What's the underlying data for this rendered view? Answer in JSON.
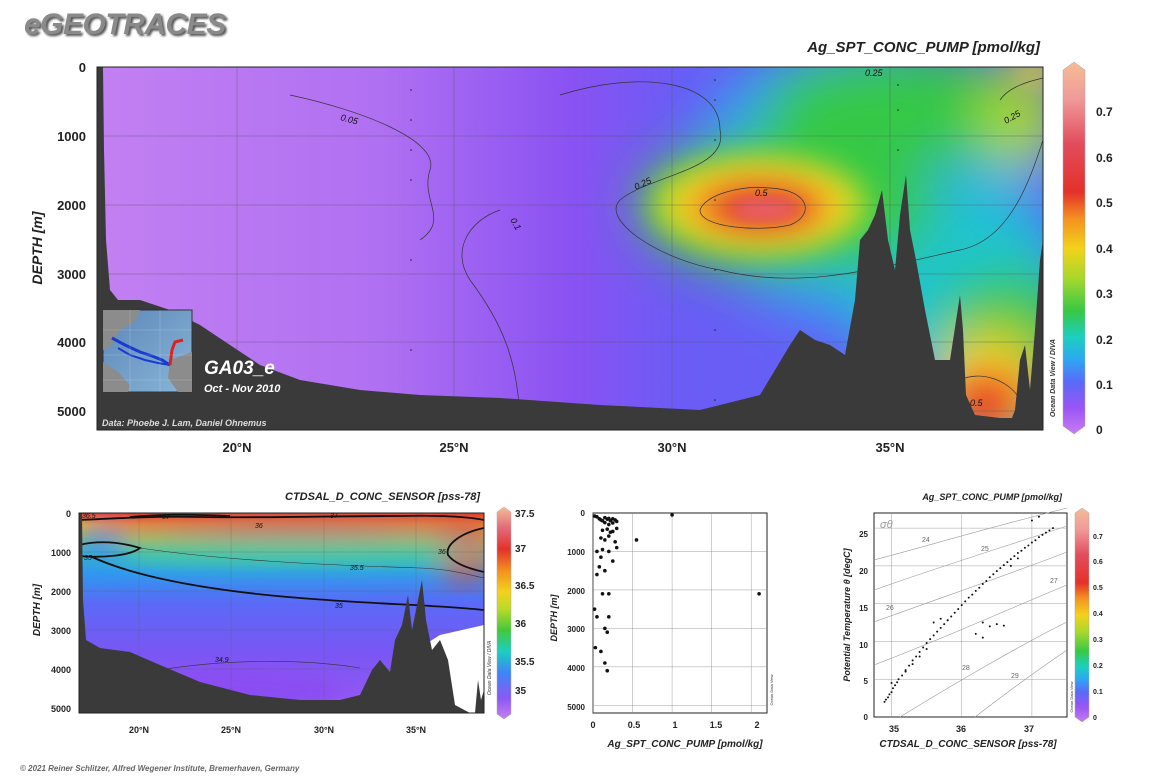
{
  "header": {
    "logo": "eGEOTRACES",
    "copyright": "© 2021 Reiner Schlitzer, Alfred Wegener Institute, Bremerhaven, Germany"
  },
  "main_plot": {
    "title": "Ag_SPT_CONC_PUMP [pmol/kg]",
    "ylabel": "DEPTH [m]",
    "y_ticks": [
      "0",
      "1000",
      "2000",
      "3000",
      "4000",
      "5000"
    ],
    "x_ticks": [
      "20°N",
      "25°N",
      "30°N",
      "35°N"
    ],
    "colorbar_ticks": [
      "0",
      "0.1",
      "0.2",
      "0.3",
      "0.4",
      "0.5",
      "0.6",
      "0.7"
    ],
    "vertical_label": "Ocean Data View / DIVA",
    "section_name": "GA03_e",
    "section_date": "Oct - Nov 2010",
    "data_credit": "Data: Phoebe J. Lam, Daniel Ohnemus",
    "contour_labels": [
      "0.05",
      "0.1",
      "0.25",
      "0.25",
      "0.25",
      "0.5",
      "0.5"
    ]
  },
  "bottom_left": {
    "title": "CTDSAL_D_CONC_SENSOR [pss-78]",
    "ylabel": "DEPTH [m]",
    "y_ticks": [
      "0",
      "1000",
      "2000",
      "3000",
      "4000",
      "5000"
    ],
    "x_ticks": [
      "20°N",
      "25°N",
      "30°N",
      "35°N"
    ],
    "colorbar_ticks": [
      "35",
      "35.5",
      "36",
      "36.5",
      "37",
      "37.5"
    ],
    "vertical_label": "Ocean Data View / DIVA",
    "contour_labels": [
      "36.5",
      "37",
      "37",
      "36",
      "35",
      "35.5",
      "36",
      "35",
      "34.9"
    ]
  },
  "bottom_middle": {
    "xlabel": "Ag_SPT_CONC_PUMP [pmol/kg]",
    "ylabel": "DEPTH [m]",
    "y_ticks": [
      "0",
      "1000",
      "2000",
      "3000",
      "4000",
      "5000"
    ],
    "x_ticks": [
      "0",
      "0.5",
      "1",
      "1.5",
      "2"
    ],
    "vertical_label": "Ocean Data View"
  },
  "bottom_right": {
    "title": "Ag_SPT_CONC_PUMP [pmol/kg]",
    "xlabel": "CTDSAL_D_CONC_SENSOR [pss-78]",
    "ylabel": "Potential Temperature θ [degC]",
    "y_ticks": [
      "0",
      "5",
      "10",
      "15",
      "20",
      "25"
    ],
    "x_ticks": [
      "35",
      "36",
      "37"
    ],
    "colorbar_ticks": [
      "0",
      "0.1",
      "0.2",
      "0.3",
      "0.4",
      "0.5",
      "0.6",
      "0.7"
    ],
    "vertical_label": "Ocean Data View",
    "sigma_label": "σθ",
    "isopycnal_labels": [
      "24",
      "25",
      "26",
      "27",
      "28",
      "29"
    ]
  },
  "chart_data": [
    {
      "type": "heatmap",
      "title": "Ag_SPT_CONC_PUMP [pmol/kg]",
      "ylabel": "DEPTH [m]",
      "xlim": [
        17,
        38.5
      ],
      "ylim": [
        5300,
        0
      ],
      "colorbar_range": [
        0,
        0.8
      ],
      "contour_levels": [
        0.05,
        0.1,
        0.25,
        0.5
      ],
      "max_feature": {
        "lat": 32,
        "depth": 2050,
        "value": 0.55
      }
    },
    {
      "type": "heatmap",
      "title": "CTDSAL_D_CONC_SENSOR [pss-78]",
      "ylabel": "DEPTH [m]",
      "xlim": [
        17,
        38.5
      ],
      "ylim": [
        5300,
        0
      ],
      "colorbar_range": [
        34.8,
        37.5
      ],
      "contour_levels": [
        34.9,
        35,
        35.5,
        36,
        36.5,
        37
      ]
    },
    {
      "type": "scatter",
      "xlabel": "Ag_SPT_CONC_PUMP [pmol/kg]",
      "ylabel": "DEPTH [m]",
      "xlim": [
        0,
        2.2
      ],
      "ylim": [
        5200,
        0
      ],
      "x": [
        0.02,
        0.05,
        0.08,
        0.1,
        0.12,
        0.15,
        0.15,
        0.18,
        0.2,
        0.2,
        0.22,
        0.25,
        0.25,
        0.28,
        0.3,
        0.3,
        0.12,
        0.18,
        0.22,
        0.25,
        0.1,
        0.15,
        0.2,
        0.28,
        0.05,
        0.12,
        0.3,
        0.55,
        0.1,
        0.2,
        0.25,
        0.15,
        0.05,
        0.08,
        0.2,
        0.12,
        0.02,
        0.05,
        0.15,
        0.18,
        0.2,
        0.03,
        0.1,
        0.15,
        0.18,
        1.0,
        2.1
      ],
      "y": [
        80,
        100,
        150,
        180,
        200,
        120,
        250,
        160,
        140,
        300,
        200,
        150,
        260,
        180,
        220,
        400,
        450,
        420,
        500,
        480,
        650,
        700,
        600,
        750,
        1000,
        950,
        900,
        700,
        1150,
        1000,
        1250,
        1500,
        1600,
        1400,
        2100,
        2100,
        2500,
        2700,
        3000,
        3100,
        2700,
        3500,
        3600,
        3900,
        4100,
        50,
        2100
      ]
    },
    {
      "type": "scatter",
      "xlabel": "CTDSAL_D_CONC_SENSOR [pss-78]",
      "ylabel": "Potential Temperature θ [degC]",
      "xlim": [
        34.75,
        37.5
      ],
      "ylim": [
        0,
        27
      ],
      "x": [
        34.9,
        34.92,
        34.95,
        34.97,
        35.0,
        35.02,
        35.05,
        35.08,
        35.1,
        35.15,
        35.2,
        35.25,
        35.3,
        35.35,
        35.4,
        35.45,
        35.5,
        35.55,
        35.6,
        35.65,
        35.7,
        35.75,
        35.8,
        35.85,
        35.9,
        35.95,
        36.0,
        36.05,
        36.1,
        36.15,
        36.2,
        36.25,
        36.3,
        36.35,
        36.4,
        36.45,
        36.5,
        36.55,
        36.6,
        36.65,
        36.7,
        36.75,
        36.8,
        36.85,
        36.9,
        36.95,
        37.0,
        37.05,
        37.1,
        37.15,
        37.2,
        37.25,
        37.3,
        35.6,
        35.7,
        35.8,
        36.3,
        36.4,
        36.5,
        36.6,
        35.3,
        35.4,
        35.5,
        36.2,
        36.3,
        36.7,
        36.8,
        37.0,
        37.1,
        35.0,
        35.2
      ],
      "y": [
        2.0,
        2.3,
        2.6,
        3.0,
        3.3,
        3.8,
        4.2,
        4.6,
        5.0,
        5.5,
        6.2,
        6.8,
        7.5,
        8.0,
        8.6,
        9.2,
        9.8,
        10.3,
        10.8,
        11.3,
        11.8,
        12.3,
        12.8,
        13.3,
        13.8,
        14.3,
        14.8,
        15.3,
        15.8,
        16.2,
        16.7,
        17.1,
        17.6,
        18.0,
        18.5,
        18.9,
        19.3,
        19.7,
        20.1,
        20.5,
        20.9,
        21.3,
        21.7,
        22.0,
        22.4,
        22.7,
        23.1,
        23.4,
        23.8,
        24.1,
        24.4,
        24.7,
        25.0,
        12.5,
        13.0,
        12.8,
        12.5,
        12.0,
        12.3,
        12.1,
        7.0,
        8.0,
        9.0,
        11.0,
        10.5,
        20.0,
        21.0,
        26.0,
        26.5,
        4.5,
        6.0
      ]
    }
  ]
}
